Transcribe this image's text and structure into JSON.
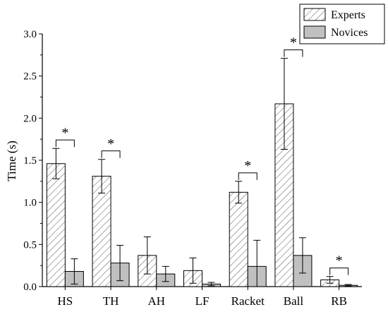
{
  "chart_data": {
    "type": "bar",
    "title": "",
    "xlabel": "",
    "ylabel": "Time (s)",
    "ylim": [
      0,
      3.0
    ],
    "yticks": [
      "0.0",
      "0.5",
      "1.0",
      "1.5",
      "2.0",
      "2.5",
      "3.0"
    ],
    "categories": [
      "HS",
      "TH",
      "AH",
      "LF",
      "Racket",
      "Ball",
      "RB"
    ],
    "series": [
      {
        "name": "Experts",
        "fill": "hatched",
        "values": [
          1.46,
          1.31,
          0.37,
          0.19,
          1.12,
          2.17,
          0.08
        ],
        "errors": [
          0.18,
          0.2,
          0.22,
          0.15,
          0.13,
          0.54,
          0.04
        ]
      },
      {
        "name": "Novices",
        "fill": "gray",
        "color": "#c0c0c0",
        "values": [
          0.18,
          0.28,
          0.15,
          0.03,
          0.24,
          0.37,
          0.015
        ],
        "errors": [
          0.15,
          0.21,
          0.09,
          0.02,
          0.31,
          0.21,
          0.01
        ]
      }
    ],
    "significance": [
      {
        "category": "HS",
        "label": "*"
      },
      {
        "category": "TH",
        "label": "*"
      },
      {
        "category": "Racket",
        "label": "*"
      },
      {
        "category": "Ball",
        "label": "*"
      },
      {
        "category": "RB",
        "label": "*"
      }
    ],
    "legend_position": "top-right",
    "grid": false
  }
}
